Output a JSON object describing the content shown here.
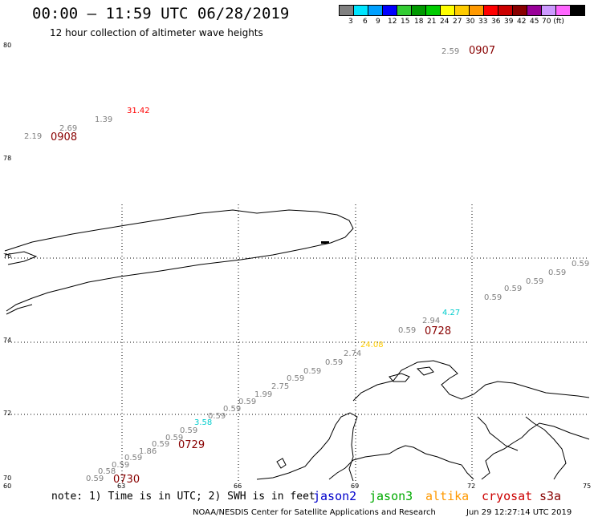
{
  "header": {
    "title": "00:00 – 11:59 UTC 06/28/2019",
    "subtitle": "12 hour collection of altimeter wave heights"
  },
  "legend": {
    "colors": [
      "#808080",
      "#00e5ff",
      "#00a0ff",
      "#0000ff",
      "#33cc33",
      "#009900",
      "#00cc00",
      "#ffff00",
      "#ffcc00",
      "#ff9900",
      "#ff0000",
      "#cc0000",
      "#880000",
      "#990099",
      "#cc99ff",
      "#ff66ff",
      "#000000"
    ],
    "labels": [
      "3",
      "6",
      "9",
      "12",
      "15",
      "18",
      "21",
      "24",
      "27",
      "30",
      "33",
      "36",
      "39",
      "42",
      "45",
      "70 (ft)"
    ]
  },
  "axes": {
    "y_labels": [
      "80",
      "78",
      "76",
      "74",
      "72",
      "70"
    ],
    "x_labels": [
      "60",
      "63",
      "66",
      "69",
      "72",
      "75"
    ]
  },
  "passes": [
    {
      "label": "0907",
      "color": "#880000"
    },
    {
      "label": "0908",
      "color": "#880000"
    },
    {
      "label": "0728",
      "color": "#880000"
    },
    {
      "label": "0729",
      "color": "#880000"
    },
    {
      "label": "0730",
      "color": "#880000"
    }
  ],
  "swh_readings": [
    {
      "value": "2.59",
      "color": "#808080"
    },
    {
      "value": "31.42",
      "color": "#ff0000"
    },
    {
      "value": "1.39",
      "color": "#808080"
    },
    {
      "value": "2.69",
      "color": "#808080"
    },
    {
      "value": "2.19",
      "color": "#808080"
    },
    {
      "value": "0.59",
      "color": "#808080"
    },
    {
      "value": "0.59",
      "color": "#808080"
    },
    {
      "value": "0.59",
      "color": "#808080"
    },
    {
      "value": "0.59",
      "color": "#808080"
    },
    {
      "value": "0.59",
      "color": "#808080"
    },
    {
      "value": "4.27",
      "color": "#00cccc"
    },
    {
      "value": "2.94",
      "color": "#808080"
    },
    {
      "value": "0.59",
      "color": "#808080"
    },
    {
      "value": "24.08",
      "color": "#ffcc00"
    },
    {
      "value": "2.74",
      "color": "#808080"
    },
    {
      "value": "0.59",
      "color": "#808080"
    },
    {
      "value": "0.59",
      "color": "#808080"
    },
    {
      "value": "0.59",
      "color": "#808080"
    },
    {
      "value": "2.75",
      "color": "#808080"
    },
    {
      "value": "1.99",
      "color": "#808080"
    },
    {
      "value": "0.59",
      "color": "#808080"
    },
    {
      "value": "0.59",
      "color": "#808080"
    },
    {
      "value": "0.59",
      "color": "#808080"
    },
    {
      "value": "3.58",
      "color": "#00cccc"
    },
    {
      "value": "0.59",
      "color": "#808080"
    },
    {
      "value": "0.59",
      "color": "#808080"
    },
    {
      "value": "0.59",
      "color": "#808080"
    },
    {
      "value": "1.86",
      "color": "#808080"
    },
    {
      "value": "0.59",
      "color": "#808080"
    },
    {
      "value": "0.59",
      "color": "#808080"
    },
    {
      "value": "0.58",
      "color": "#808080"
    },
    {
      "value": "0.59",
      "color": "#808080"
    }
  ],
  "footer": {
    "note": "note: 1) Time is in UTC; 2) SWH is in feet",
    "satellites": [
      {
        "name": "jason2",
        "color": "#0000cc"
      },
      {
        "name": "jason3",
        "color": "#00aa00"
      },
      {
        "name": "altika",
        "color": "#ff9900"
      },
      {
        "name": "cryosat",
        "color": "#cc0000"
      },
      {
        "name": "s3a",
        "color": "#880000"
      }
    ],
    "credit": "NOAA/NESDIS Center for Satellite Applications and Research",
    "timestamp": "Jun 29 12:27:14 UTC 2019"
  }
}
